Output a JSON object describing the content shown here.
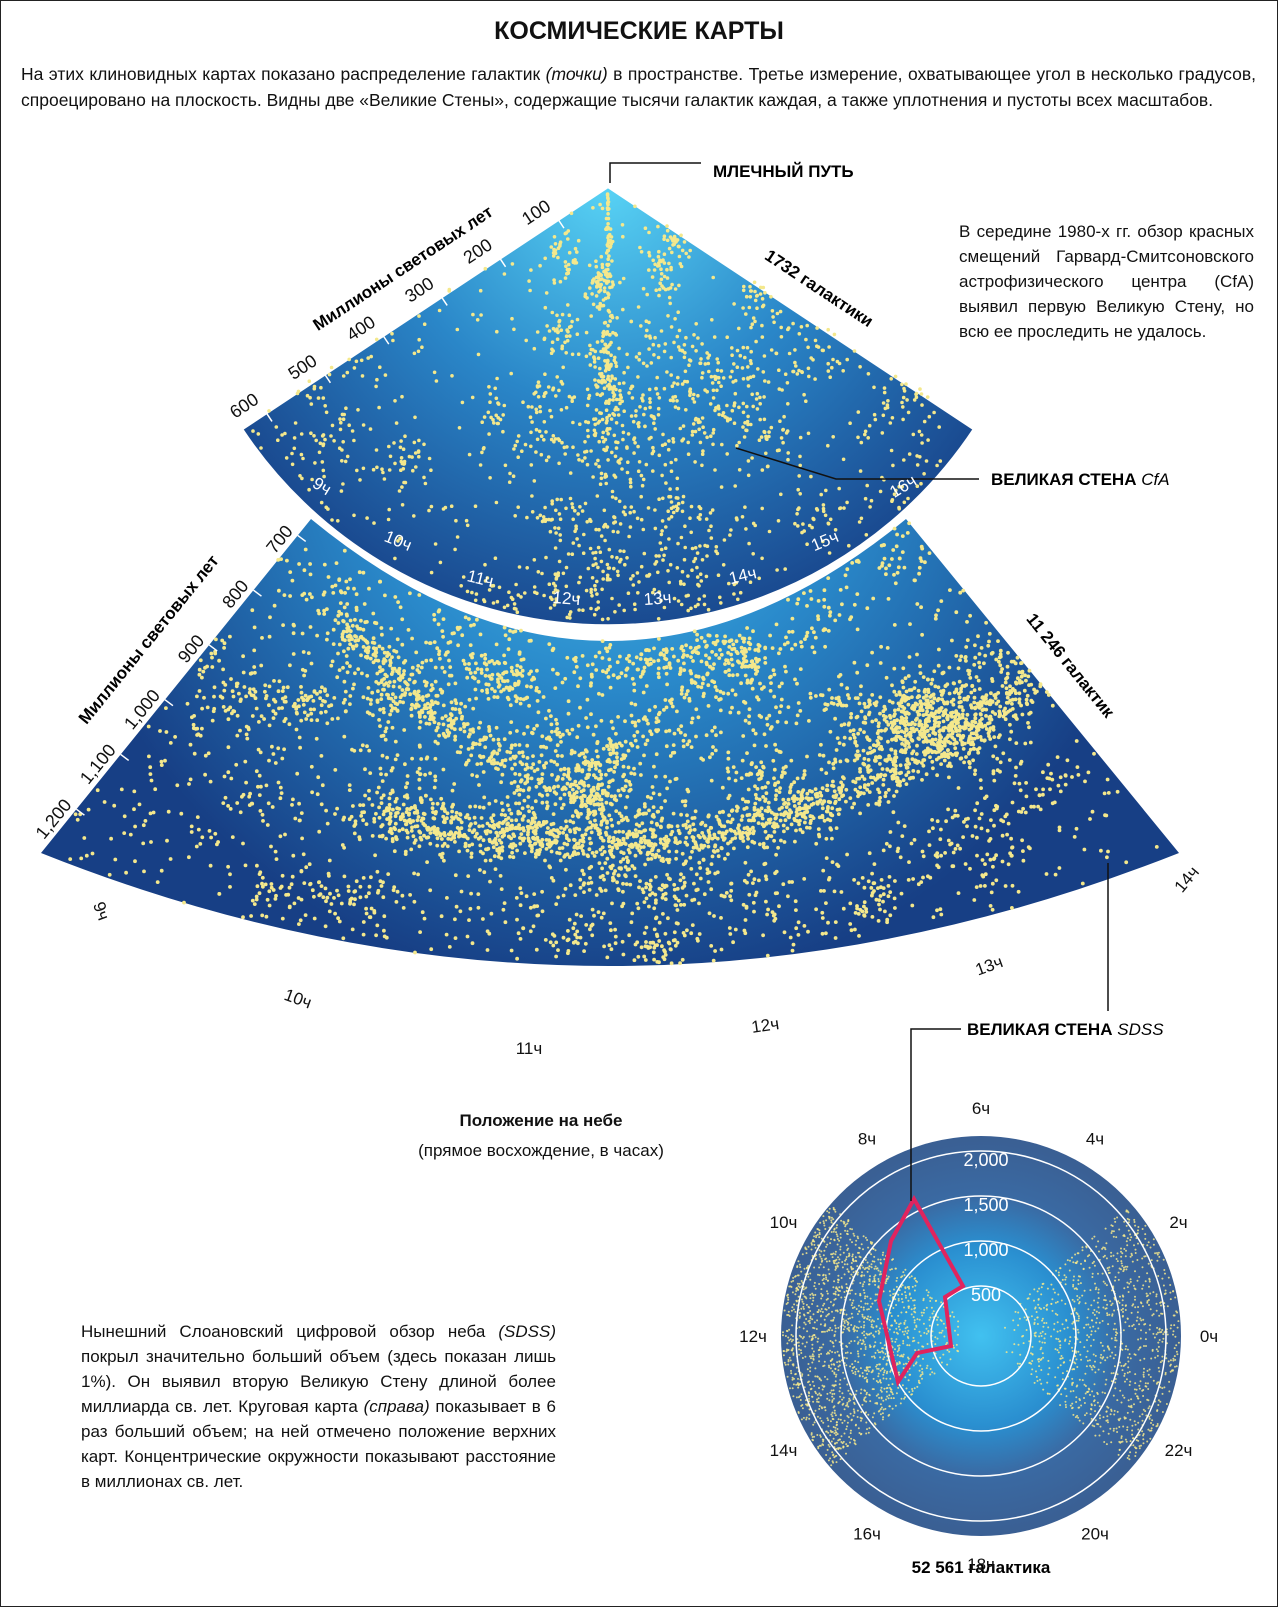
{
  "header": {
    "title": "КОСМИЧЕСКИЕ КАРТЫ",
    "intro": [
      "На этих клиновидных картах показано распределение галактик ",
      "(точки)",
      " в пространстве. Третье измерение, охватывающее угол в несколько градусов, спроецировано на плоскость. Видны две «Великие Стены», содержащие тысячи галактик каждая, а также уплотнения и пустоты всех масштабов."
    ]
  },
  "cfa_map": {
    "axis_title": "Миллионы световых лет",
    "distance_labels": [
      "100",
      "200",
      "300",
      "400",
      "500",
      "600"
    ],
    "hour_labels": [
      "9ч",
      "10ч",
      "11ч",
      "12ч",
      "13ч",
      "14ч",
      "15ч",
      "16ч"
    ],
    "count": "1732 галактики"
  },
  "sdss_map": {
    "axis_title": "Миллионы световых лет",
    "distance_labels": [
      "700",
      "800",
      "900",
      "1,000",
      "1,100",
      "1,200"
    ],
    "hour_labels": [
      "9ч",
      "10ч",
      "11ч",
      "12ч",
      "13ч",
      "14ч"
    ],
    "count": "11 246 галактик"
  },
  "callouts": {
    "milky_way": "МЛЕЧНЫЙ ПУТЬ",
    "cfa_wall": {
      "text": "ВЕЛИКАЯ СТЕНА",
      "survey": "CfA"
    },
    "sdss_wall": {
      "text": "ВЕЛИКАЯ СТЕНА",
      "survey": "SDSS"
    }
  },
  "cfa_note": "В середине 1980-х гг. обзор красных смещений Гарвард-Смитсоновского астрофизического центра (CfA) выявил первую Великую Стену, но всю ее проследить не удалось.",
  "sky_position": {
    "title": "Положение на небе",
    "subtitle": "(прямое восхождение, в часах)"
  },
  "sdss_note": [
    "Нынешний Слоановский цифровой обзор неба ",
    "(SDSS)",
    " покрыл значительно больший объем (здесь показан лишь 1%). Он выявил вторую Великую Стену длиной более миллиарда св. лет. Круговая карта ",
    "(справа)",
    " показывает в 6 раз больший объем; на ней отмечено положение верхних карт. Концентрические окружности показывают расстояние в миллионах св. лет."
  ],
  "circle_map": {
    "hour_labels": [
      "0ч",
      "2ч",
      "4ч",
      "6ч",
      "8ч",
      "10ч",
      "12ч",
      "14ч",
      "16ч",
      "18ч",
      "20ч",
      "22ч"
    ],
    "ring_labels": [
      "500",
      "1,000",
      "1,500",
      "2,000"
    ],
    "count": "52 561 галактика"
  }
}
